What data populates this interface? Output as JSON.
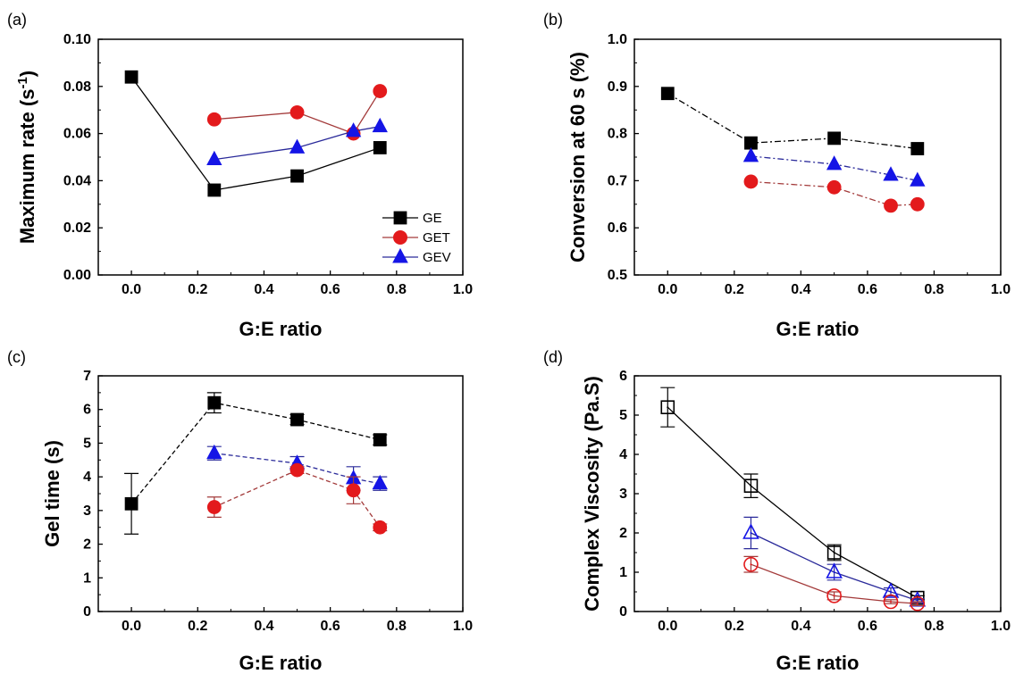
{
  "colors": {
    "GE": "#000000",
    "GET": "#e31a1c",
    "GEV": "#1515e6",
    "GE_line": "#000000",
    "GET_line": "#a33a3a",
    "GEV_line": "#2a2a9a"
  },
  "chart_data": [
    {
      "label": "(a)",
      "type": "scatter",
      "xlabel": "G:E ratio",
      "ylabel": "Maximum rate (s",
      "ylabel_sup": "-1",
      "ylabel_end": ")",
      "xlim": [
        -0.1,
        1.0
      ],
      "ylim": [
        0.0,
        0.1
      ],
      "xticks": [
        "0.0",
        "0.2",
        "0.4",
        "0.6",
        "0.8",
        "1.0"
      ],
      "yticks": [
        "0.00",
        "0.02",
        "0.04",
        "0.06",
        "0.08",
        "0.10"
      ],
      "legend": "inside-right",
      "series": [
        {
          "name": "GE",
          "marker": "square",
          "filled": true,
          "dash": "solid",
          "x": [
            0.0,
            0.25,
            0.5,
            0.75
          ],
          "y": [
            0.084,
            0.036,
            0.042,
            0.054
          ]
        },
        {
          "name": "GET",
          "marker": "circle",
          "filled": true,
          "dash": "solid",
          "x": [
            0.25,
            0.5,
            0.67,
            0.75
          ],
          "y": [
            0.066,
            0.069,
            0.06,
            0.078
          ]
        },
        {
          "name": "GEV",
          "marker": "triangle",
          "filled": true,
          "dash": "solid",
          "x": [
            0.25,
            0.5,
            0.67,
            0.75
          ],
          "y": [
            0.049,
            0.054,
            0.061,
            0.063
          ]
        }
      ]
    },
    {
      "label": "(b)",
      "type": "scatter",
      "xlabel": "G:E ratio",
      "ylabel": "Conversion at 60 s (%)",
      "xlim": [
        -0.1,
        1.0
      ],
      "ylim": [
        0.5,
        1.0
      ],
      "xticks": [
        "0.0",
        "0.2",
        "0.4",
        "0.6",
        "0.8",
        "1.0"
      ],
      "yticks": [
        "0.5",
        "0.6",
        "0.7",
        "0.8",
        "0.9",
        "1.0"
      ],
      "series": [
        {
          "name": "GE",
          "marker": "square",
          "filled": true,
          "dash": "dashdot",
          "x": [
            0.0,
            0.25,
            0.5,
            0.75
          ],
          "y": [
            0.885,
            0.78,
            0.79,
            0.768
          ]
        },
        {
          "name": "GEV",
          "marker": "triangle",
          "filled": true,
          "dash": "dashdot",
          "x": [
            0.25,
            0.5,
            0.67,
            0.75
          ],
          "y": [
            0.752,
            0.735,
            0.712,
            0.7
          ]
        },
        {
          "name": "GET",
          "marker": "circle",
          "filled": true,
          "dash": "dashdot",
          "x": [
            0.25,
            0.5,
            0.67,
            0.75
          ],
          "y": [
            0.698,
            0.686,
            0.647,
            0.65
          ]
        }
      ]
    },
    {
      "label": "(c)",
      "type": "scatter",
      "xlabel": "G:E ratio",
      "ylabel": "Gel time (s)",
      "xlim": [
        -0.1,
        1.0
      ],
      "ylim": [
        0,
        7
      ],
      "xticks": [
        "0.0",
        "0.2",
        "0.4",
        "0.6",
        "0.8",
        "1.0"
      ],
      "yticks": [
        "0",
        "1",
        "2",
        "3",
        "4",
        "5",
        "6",
        "7"
      ],
      "series": [
        {
          "name": "GE",
          "marker": "square",
          "filled": true,
          "dash": "dashed",
          "x": [
            0.0,
            0.25,
            0.5,
            0.75
          ],
          "y": [
            3.2,
            6.2,
            5.7,
            5.1
          ],
          "err": [
            0.9,
            0.3,
            0.15,
            0.15
          ]
        },
        {
          "name": "GEV",
          "marker": "triangle",
          "filled": true,
          "dash": "dashed",
          "x": [
            0.25,
            0.5,
            0.67,
            0.75
          ],
          "y": [
            4.7,
            4.4,
            3.95,
            3.8
          ],
          "err": [
            0.2,
            0.2,
            0.35,
            0.2
          ]
        },
        {
          "name": "GET",
          "marker": "circle",
          "filled": true,
          "dash": "dashed",
          "x": [
            0.25,
            0.5,
            0.67,
            0.75
          ],
          "y": [
            3.1,
            4.2,
            3.6,
            2.5
          ],
          "err": [
            0.3,
            0.1,
            0.4,
            0.1
          ]
        }
      ]
    },
    {
      "label": "(d)",
      "type": "scatter",
      "xlabel": "G:E ratio",
      "ylabel": "Complex Viscosity (Pa.S)",
      "xlim": [
        -0.1,
        1.0
      ],
      "ylim": [
        0,
        6
      ],
      "xticks": [
        "0.0",
        "0.2",
        "0.4",
        "0.6",
        "0.8",
        "1.0"
      ],
      "yticks": [
        "0",
        "1",
        "2",
        "3",
        "4",
        "5",
        "6"
      ],
      "series": [
        {
          "name": "GE",
          "marker": "square",
          "filled": false,
          "dash": "solid",
          "x": [
            0.0,
            0.25,
            0.5,
            0.75
          ],
          "y": [
            5.2,
            3.2,
            1.5,
            0.35
          ],
          "err": [
            0.5,
            0.3,
            0.2,
            0.05
          ]
        },
        {
          "name": "GEV",
          "marker": "triangle",
          "filled": false,
          "dash": "solid",
          "x": [
            0.25,
            0.5,
            0.67,
            0.75
          ],
          "y": [
            2.0,
            1.0,
            0.5,
            0.28
          ],
          "err": [
            0.4,
            0.2,
            0.1,
            0.05
          ]
        },
        {
          "name": "GET",
          "marker": "circle",
          "filled": false,
          "dash": "solid",
          "x": [
            0.25,
            0.5,
            0.67,
            0.75
          ],
          "y": [
            1.2,
            0.4,
            0.25,
            0.2
          ],
          "err": [
            0.2,
            0.1,
            0.05,
            0.05
          ]
        }
      ]
    }
  ]
}
